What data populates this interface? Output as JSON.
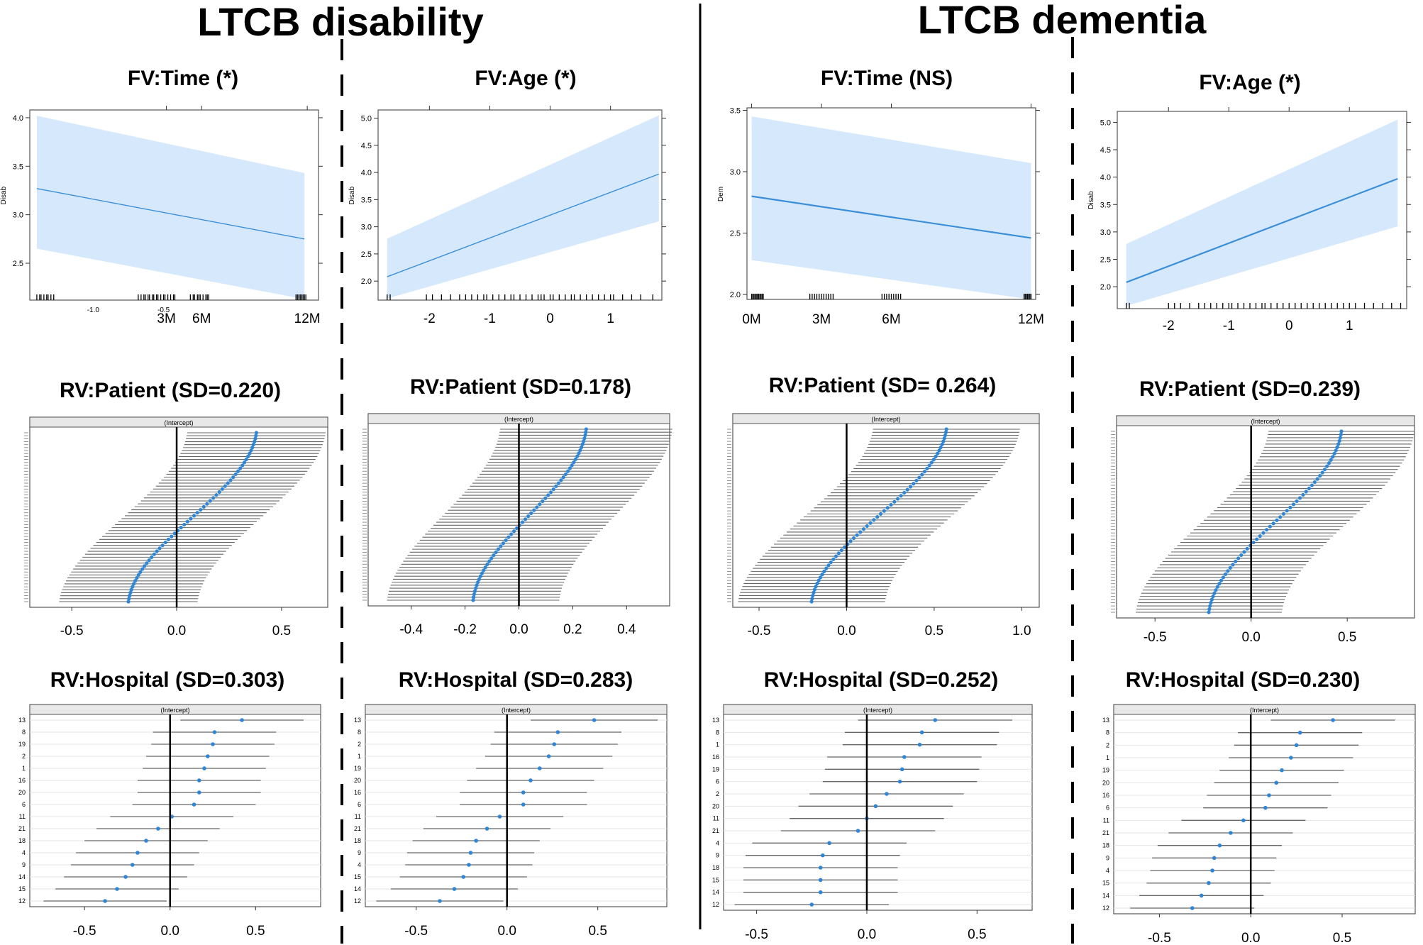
{
  "headers": {
    "left": "LTCB disability",
    "right": "LTCB dementia"
  },
  "panel_titles": {
    "p0": "FV:Time (*)",
    "p1": "FV:Age (*)",
    "p2": "FV:Time (NS)",
    "p3": "FV:Age (*)",
    "p4": "RV:Patient (SD=0.220)",
    "p5": "RV:Patient (SD=0.178)",
    "p6": "RV:Patient (SD= 0.264)",
    "p7": "RV:Patient (SD=0.239)",
    "p8": "RV:Hospital (SD=0.303)",
    "p9": "RV:Hospital (SD=0.283)",
    "p10": "RV:Hospital (SD=0.252)",
    "p11": "RV:Hospital (SD=0.230)"
  },
  "colors": {
    "line": "#3a8fd8",
    "band": "#d6e8fb",
    "dot": "#2f86d6",
    "bar": "#666666",
    "strip": "#e8e8e8"
  },
  "chart_data": [
    {
      "type": "line",
      "title": "FV:Time (*)",
      "ylabel": "Disab",
      "xlim": [
        -1.45,
        0.6
      ],
      "ylim": [
        2.12,
        4.08
      ],
      "yticks": [
        2.5,
        3.0,
        3.5,
        4.0
      ],
      "ytick_labels": [
        "2.5",
        "3.0",
        "3.5",
        "4.0"
      ],
      "xticks_small": [
        -1.0,
        -0.5
      ],
      "xtick_small_labels": [
        "-1.0",
        "-0.5"
      ],
      "xticks": [
        -0.48,
        -0.23,
        0.52
      ],
      "xtick_labels": [
        "3M",
        "6M",
        "12M"
      ],
      "x": [
        -1.4,
        0.5
      ],
      "y": [
        3.27,
        2.75
      ],
      "lower": [
        2.65,
        2.13
      ],
      "upper": [
        4.02,
        3.43
      ],
      "rug": [
        -1.4,
        -1.38,
        -1.37,
        -1.35,
        -1.33,
        -1.32,
        -1.3,
        -1.28,
        -0.68,
        -0.66,
        -0.64,
        -0.63,
        -0.61,
        -0.6,
        -0.58,
        -0.57,
        -0.55,
        -0.54,
        -0.52,
        -0.5,
        -0.49,
        -0.47,
        -0.45,
        -0.43,
        -0.42,
        -0.31,
        -0.29,
        -0.28,
        -0.26,
        -0.25,
        -0.24,
        -0.22,
        -0.2,
        -0.19,
        -0.18,
        0.44,
        0.45,
        0.46,
        0.47,
        0.48,
        0.49,
        0.5,
        0.51
      ]
    },
    {
      "type": "line",
      "title": "FV:Age (*)",
      "ylabel": "Disab",
      "xlim": [
        -2.85,
        1.85
      ],
      "ylim": [
        1.65,
        5.15
      ],
      "yticks": [
        2.0,
        2.5,
        3.0,
        3.5,
        4.0,
        4.5,
        5.0
      ],
      "ytick_labels": [
        "2.0",
        "2.5",
        "3.0",
        "3.5",
        "4.0",
        "4.5",
        "5.0"
      ],
      "xticks": [
        -2,
        -1,
        0,
        1
      ],
      "xtick_labels": [
        "-2",
        "-1",
        "0",
        "1"
      ],
      "x": [
        -2.7,
        1.8
      ],
      "y": [
        2.08,
        3.97
      ],
      "lower": [
        1.68,
        3.1
      ],
      "upper": [
        2.78,
        5.05
      ],
      "rug": [
        -2.7,
        -2.65,
        -2.05,
        -1.95,
        -1.8,
        -1.65,
        -1.5,
        -1.4,
        -1.3,
        -1.2,
        -1.1,
        -1.05,
        -0.95,
        -0.85,
        -0.75,
        -0.65,
        -0.6,
        -0.5,
        -0.4,
        -0.3,
        -0.2,
        -0.15,
        -0.1,
        0.0,
        0.05,
        0.15,
        0.25,
        0.35,
        0.4,
        0.5,
        0.6,
        0.7,
        0.8,
        0.9,
        1.0,
        1.05,
        1.2,
        1.35,
        1.5,
        1.7
      ]
    },
    {
      "type": "line",
      "title": "FV:Time (NS)",
      "ylabel": "Dem",
      "xlim": [
        -0.2,
        12.2
      ],
      "ylim": [
        1.96,
        3.52
      ],
      "yticks": [
        2.0,
        2.5,
        3.0,
        3.5
      ],
      "ytick_labels": [
        "2.0",
        "2.5",
        "3.0",
        "3.5"
      ],
      "xticks": [
        0,
        3,
        6,
        12
      ],
      "xtick_labels": [
        "0M",
        "3M",
        "6M",
        "12M"
      ],
      "x": [
        0,
        12
      ],
      "y": [
        2.8,
        2.46
      ],
      "lower": [
        2.28,
        1.96
      ],
      "upper": [
        3.45,
        3.07
      ],
      "rug": [
        0.0,
        0.05,
        0.1,
        0.15,
        0.2,
        0.25,
        0.3,
        0.35,
        0.4,
        0.45,
        0.5,
        2.5,
        2.6,
        2.7,
        2.8,
        2.9,
        3.0,
        3.1,
        3.2,
        3.3,
        3.4,
        3.5,
        5.6,
        5.7,
        5.8,
        5.9,
        6.0,
        6.1,
        6.2,
        6.3,
        6.4,
        11.7,
        11.75,
        11.8,
        11.85,
        11.9,
        11.95,
        12.0
      ]
    },
    {
      "type": "line",
      "title": "FV:Age (*)",
      "ylabel": "Disab",
      "xlim": [
        -2.85,
        1.95
      ],
      "ylim": [
        1.6,
        5.2
      ],
      "yticks": [
        2.0,
        2.5,
        3.0,
        3.5,
        4.0,
        4.5,
        5.0
      ],
      "ytick_labels": [
        "2.0",
        "2.5",
        "3.0",
        "3.5",
        "4.0",
        "4.5",
        "5.0"
      ],
      "xticks": [
        -2,
        -1,
        0,
        1
      ],
      "xtick_labels": [
        "-2",
        "-1",
        "0",
        "1"
      ],
      "x": [
        -2.7,
        1.8
      ],
      "y": [
        2.08,
        3.97
      ],
      "lower": [
        1.65,
        3.1
      ],
      "upper": [
        2.78,
        5.05
      ],
      "rug": [
        -2.7,
        -2.65,
        -2.0,
        -1.9,
        -1.8,
        -1.65,
        -1.5,
        -1.4,
        -1.3,
        -1.2,
        -1.1,
        -1.0,
        -0.95,
        -0.85,
        -0.75,
        -0.65,
        -0.55,
        -0.45,
        -0.4,
        -0.3,
        -0.2,
        -0.1,
        0.0,
        0.1,
        0.2,
        0.3,
        0.4,
        0.5,
        0.6,
        0.7,
        0.8,
        0.9,
        1.0,
        1.1,
        1.25,
        1.4,
        1.55,
        1.7,
        1.85
      ]
    },
    {
      "type": "dotplot",
      "title": "RV:Patient (SD=0.220)",
      "strip": "(Intercept)",
      "xlim": [
        -0.7,
        0.72
      ],
      "xticks": [
        -0.5,
        0.0,
        0.5
      ],
      "xtick_labels": [
        "-0.5",
        "0.0",
        "0.5"
      ],
      "n": 58,
      "min": -0.23,
      "max": 0.38,
      "hw": 0.33
    },
    {
      "type": "dotplot",
      "title": "RV:Patient (SD=0.178)",
      "strip": "(Intercept)",
      "xlim": [
        -0.56,
        0.56
      ],
      "xticks": [
        -0.4,
        -0.2,
        0.0,
        0.2,
        0.4
      ],
      "xtick_labels": [
        "-0.4",
        "-0.2",
        "0.0",
        "0.2",
        "0.4"
      ],
      "n": 58,
      "min": -0.17,
      "max": 0.25,
      "hw": 0.32
    },
    {
      "type": "dotplot",
      "title": "RV:Patient (SD= 0.264)",
      "strip": "(Intercept)",
      "xlim": [
        -0.65,
        1.1
      ],
      "xticks": [
        -0.5,
        0.0,
        0.5,
        1.0
      ],
      "xtick_labels": [
        "-0.5",
        "0.0",
        "0.5",
        "1.0"
      ],
      "n": 58,
      "min": -0.2,
      "max": 0.57,
      "hw": 0.42
    },
    {
      "type": "dotplot",
      "title": "RV:Patient (SD=0.239)",
      "strip": "(Intercept)",
      "xlim": [
        -0.7,
        0.85
      ],
      "xticks": [
        -0.5,
        0.0,
        0.5
      ],
      "xtick_labels": [
        "-0.5",
        "0.0",
        "0.5"
      ],
      "n": 58,
      "min": -0.22,
      "max": 0.47,
      "hw": 0.38
    },
    {
      "type": "dotplot",
      "title": "RV:Hospital (SD=0.303)",
      "strip": "(Intercept)",
      "xlim": [
        -0.82,
        0.88
      ],
      "xticks": [
        -0.5,
        0.0,
        0.5
      ],
      "xtick_labels": [
        "-0.5",
        "0.0",
        "0.5"
      ],
      "labels": [
        "13",
        "8",
        "19",
        "2",
        "1",
        "16",
        "20",
        "6",
        "11",
        "21",
        "18",
        "4",
        "9",
        "14",
        "15",
        "12"
      ],
      "values": [
        0.42,
        0.26,
        0.25,
        0.22,
        0.2,
        0.17,
        0.17,
        0.14,
        0.01,
        -0.07,
        -0.14,
        -0.19,
        -0.22,
        -0.26,
        -0.31,
        -0.38
      ],
      "hw": 0.36
    },
    {
      "type": "dotplot",
      "title": "RV:Hospital (SD=0.283)",
      "strip": "(Intercept)",
      "xlim": [
        -0.78,
        0.88
      ],
      "xticks": [
        -0.5,
        0.0,
        0.5
      ],
      "xtick_labels": [
        "-0.5",
        "0.0",
        "0.5"
      ],
      "labels": [
        "13",
        "8",
        "2",
        "1",
        "19",
        "20",
        "16",
        "6",
        "11",
        "21",
        "18",
        "9",
        "4",
        "15",
        "14",
        "12"
      ],
      "values": [
        0.48,
        0.28,
        0.26,
        0.23,
        0.18,
        0.13,
        0.09,
        0.09,
        -0.04,
        -0.11,
        -0.17,
        -0.2,
        -0.21,
        -0.24,
        -0.29,
        -0.37
      ],
      "hw": 0.35
    },
    {
      "type": "dotplot",
      "title": "RV:Hospital (SD=0.252)",
      "strip": "(Intercept)",
      "xlim": [
        -0.65,
        0.75
      ],
      "xticks": [
        -0.5,
        0.0,
        0.5
      ],
      "xtick_labels": [
        "-0.5",
        "0.0",
        "0.5"
      ],
      "labels": [
        "13",
        "8",
        "1",
        "16",
        "19",
        "6",
        "2",
        "20",
        "11",
        "21",
        "4",
        "9",
        "18",
        "15",
        "14",
        "12"
      ],
      "values": [
        0.31,
        0.25,
        0.24,
        0.17,
        0.16,
        0.15,
        0.09,
        0.04,
        0.0,
        -0.04,
        -0.17,
        -0.2,
        -0.21,
        -0.21,
        -0.21,
        -0.25
      ],
      "hw": 0.35
    },
    {
      "type": "dotplot",
      "title": "RV:Hospital (SD=0.230)",
      "strip": "(Intercept)",
      "xlim": [
        -0.75,
        0.9
      ],
      "xticks": [
        -0.5,
        0.0,
        0.5
      ],
      "xtick_labels": [
        "-0.5",
        "0.0",
        "0.5"
      ],
      "labels": [
        "13",
        "8",
        "2",
        "1",
        "19",
        "20",
        "16",
        "6",
        "11",
        "21",
        "18",
        "9",
        "4",
        "15",
        "14",
        "12"
      ],
      "values": [
        0.45,
        0.27,
        0.25,
        0.22,
        0.17,
        0.14,
        0.1,
        0.08,
        -0.04,
        -0.11,
        -0.17,
        -0.2,
        -0.21,
        -0.23,
        -0.27,
        -0.32
      ],
      "hw": 0.34
    }
  ]
}
